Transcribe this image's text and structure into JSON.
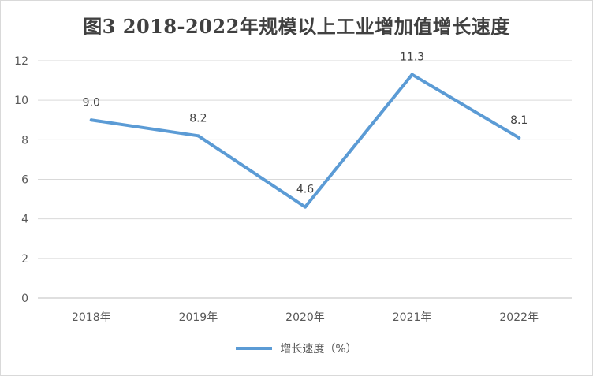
{
  "chart_data": {
    "type": "line",
    "title": "图3  2018-2022年规模以上工业增加值增长速度",
    "categories": [
      "2018年",
      "2019年",
      "2020年",
      "2021年",
      "2022年"
    ],
    "series": [
      {
        "name": "增长速度（%）",
        "values": [
          9.0,
          8.2,
          4.6,
          11.3,
          8.1
        ],
        "color": "#5b9bd5"
      }
    ],
    "data_labels": [
      "9.0",
      "8.2",
      "4.6",
      "11.3",
      "8.1"
    ],
    "ylim": [
      0,
      12
    ],
    "yticks": [
      0,
      2,
      4,
      6,
      8,
      10,
      12
    ],
    "grid": true,
    "legend_position": "bottom"
  }
}
